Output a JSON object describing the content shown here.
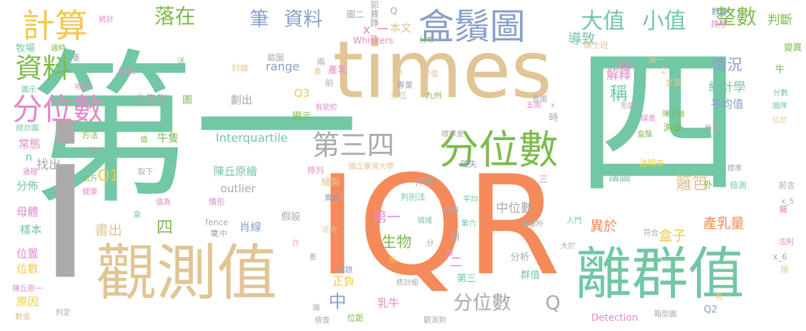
{
  "words": [
    {
      "text": "第一",
      "color": "#72c7a4"
    },
    {
      "text": "四",
      "color": "#72c7a4"
    },
    {
      "text": "IQR",
      "color": "#f58a5a"
    },
    {
      "text": "times",
      "color": "#e0c596"
    },
    {
      "text": "i",
      "color": "#aaaaaa"
    },
    {
      "text": "觀測值",
      "color": "#e0c596"
    },
    {
      "text": "離群值",
      "color": "#72c7a4"
    },
    {
      "text": "盒鬚圖",
      "color": "#8aa0c8"
    },
    {
      "text": "分位數",
      "color": "#7dbb4c"
    },
    {
      "text": "第三四",
      "color": "#aaaaaa"
    },
    {
      "text": "計算",
      "color": "#f2c94c"
    },
    {
      "text": "資料",
      "color": "#7dbb4c"
    },
    {
      "text": "分位數",
      "color": "#e38ac9"
    },
    {
      "text": "落在",
      "color": "#7dbb4c"
    },
    {
      "text": "筆",
      "color": "#8aa0c8"
    },
    {
      "text": "資料",
      "color": "#8aa0c8"
    },
    {
      "text": "大值",
      "color": "#72c7a4"
    },
    {
      "text": "小值",
      "color": "#72c7a4"
    },
    {
      "text": "整數",
      "color": "#7dbb4c"
    },
    {
      "text": "判斷",
      "color": "#7dbb4c"
    },
    {
      "text": "統計",
      "color": "#e38ac9"
    },
    {
      "text": "圖二",
      "color": "#aaaaaa"
    },
    {
      "text": "郭寶錚",
      "color": "#aaaaaa"
    },
    {
      "text": "Q",
      "color": "#aaaaaa"
    },
    {
      "text": "本文",
      "color": "#e0c596"
    },
    {
      "text": "x_一",
      "color": "#e38ac9"
    },
    {
      "text": "Whiskers",
      "color": "#e38ac9"
    },
    {
      "text": "分布",
      "color": "#7dbb4c"
    },
    {
      "text": "導致",
      "color": "#72c7a4"
    },
    {
      "text": "碩士班",
      "color": "#e0c596"
    },
    {
      "text": "數據",
      "color": "#8aa0c8"
    },
    {
      "text": "排序",
      "color": "#e38ac9"
    },
    {
      "text": "變異",
      "color": "#7dbb4c"
    },
    {
      "text": "牧場",
      "color": "#72c7a4"
    },
    {
      "text": "適時",
      "color": "#7dbb4c"
    },
    {
      "text": "隻",
      "color": "#aaaaaa"
    },
    {
      "text": "視為",
      "color": "#e38ac9"
    },
    {
      "text": "法",
      "color": "#7dbb4c"
    },
    {
      "text": "歐圖",
      "color": "#aaaaaa"
    },
    {
      "text": "range",
      "color": "#8aa0c8"
    },
    {
      "text": "討論",
      "color": "#e0c596"
    },
    {
      "text": "兩",
      "color": "#aaaaaa"
    },
    {
      "text": "產乳",
      "color": "#e38ac9"
    },
    {
      "text": "前",
      "color": "#aaaaaa"
    },
    {
      "text": "Q3",
      "color": "#f2c94c"
    },
    {
      "text": "情況",
      "color": "#8aa0c8"
    },
    {
      "text": "解釋",
      "color": "#e38ac9"
    },
    {
      "text": "標出",
      "color": "#e38ac9"
    },
    {
      "text": "圖一",
      "color": "#e0c596"
    },
    {
      "text": "牛",
      "color": "#7dbb4c"
    },
    {
      "text": "分數",
      "color": "#72c7a4"
    },
    {
      "text": "順序",
      "color": "#72c7a4"
    },
    {
      "text": "位於",
      "color": "#e0c596"
    },
    {
      "text": "圖示",
      "color": "#72c7a4"
    },
    {
      "text": "收集",
      "color": "#e38ac9"
    },
    {
      "text": "收集到",
      "color": "#aaaaaa"
    },
    {
      "text": "圖",
      "color": "#7dbb4c"
    },
    {
      "text": "劃出",
      "color": "#aaaaaa"
    },
    {
      "text": "專業",
      "color": "#aaaaaa"
    },
    {
      "text": "分位",
      "color": "#e0c596"
    },
    {
      "text": "九州",
      "color": "#7dbb4c"
    },
    {
      "text": "意圖",
      "color": "#aaaaaa"
    },
    {
      "text": "統計學",
      "color": "#72c7a4"
    },
    {
      "text": "文獻",
      "color": "#e0c596"
    },
    {
      "text": "平均值",
      "color": "#8aa0c8"
    },
    {
      "text": "稱",
      "color": "#72c7a4"
    },
    {
      "text": "時",
      "color": "#aaaaaa"
    },
    {
      "text": "五南",
      "color": "#e38ac9"
    },
    {
      "text": "x",
      "color": "#72c7a4"
    },
    {
      "text": "形圖",
      "color": "#aaaaaa"
    },
    {
      "text": "誤差",
      "color": "#e38ac9"
    },
    {
      "text": "陳玉敏",
      "color": "#7dbb4c"
    },
    {
      "text": "測量",
      "color": "#7dbb4c"
    },
    {
      "text": "參考",
      "color": "#aaaaaa"
    },
    {
      "text": "盒鬚",
      "color": "#7dbb4c"
    },
    {
      "text": "顯示",
      "color": "#7dbb4c"
    },
    {
      "text": "有助於",
      "color": "#e38ac9"
    },
    {
      "text": "統計圖",
      "color": "#72c7a4"
    },
    {
      "text": "方法",
      "color": "#7dbb4c"
    },
    {
      "text": "值",
      "color": "#7dbb4c"
    },
    {
      "text": "牛隻",
      "color": "#7dbb4c"
    },
    {
      "text": "Interquartile",
      "color": "#72c7a4"
    },
    {
      "text": "標準差",
      "color": "#aaaaaa"
    },
    {
      "text": "常態",
      "color": "#e38ac9"
    },
    {
      "text": "標示",
      "color": "#aaaaaa"
    },
    {
      "text": "n",
      "color": "#72c7a4"
    },
    {
      "text": "過程",
      "color": "#e38ac9"
    },
    {
      "text": "找出",
      "color": "#aaaaaa"
    },
    {
      "text": "取下",
      "color": "#aaaaaa"
    },
    {
      "text": "排列",
      "color": "#e38ac9"
    },
    {
      "text": "國立臺灣大學",
      "color": "#e0c596"
    },
    {
      "text": "疏失",
      "color": "#8aa0c8"
    },
    {
      "text": "沈明來",
      "color": "#f2c94c"
    },
    {
      "text": "標準",
      "color": "#aaaaaa"
    },
    {
      "text": "Q1",
      "color": "#f2c94c"
    },
    {
      "text": "陳丘原繪",
      "color": "#72c7a4"
    },
    {
      "text": "繪製",
      "color": "#e0c596"
    },
    {
      "text": "作者",
      "color": "#aaaaaa"
    },
    {
      "text": "三",
      "color": "#e38ac9"
    },
    {
      "text": "公斤",
      "color": "#7dbb4c"
    },
    {
      "text": "健康",
      "color": "#e38ac9"
    },
    {
      "text": "outlier",
      "color": "#aaaaaa"
    },
    {
      "text": "盒",
      "color": "#72c7a4"
    },
    {
      "text": "鬚圖",
      "color": "#72c7a4"
    },
    {
      "text": "籬笆",
      "color": "#e0c596"
    },
    {
      "text": "外",
      "color": "#7dbb4c"
    },
    {
      "text": "檢測",
      "color": "#72c7a4"
    },
    {
      "text": "分佈",
      "color": "#72c7a4"
    },
    {
      "text": "值為",
      "color": "#e38ac9"
    },
    {
      "text": "情形",
      "color": "#e38ac9"
    },
    {
      "text": "實驗",
      "color": "#8aa0c8"
    },
    {
      "text": "判別法",
      "color": "#72c7a4"
    },
    {
      "text": "平均",
      "color": "#72c7a4"
    },
    {
      "text": "經驗",
      "color": "#aaaaaa"
    },
    {
      "text": "中位數",
      "color": "#aaaaaa"
    },
    {
      "text": "籬",
      "color": "#e38ac9"
    },
    {
      "text": "前言",
      "color": "#aaaaaa"
    },
    {
      "text": "母體",
      "color": "#e38ac9"
    },
    {
      "text": "x_5",
      "color": "#aaaaaa"
    },
    {
      "text": "樣本",
      "color": "#72c7a4"
    },
    {
      "text": "假設",
      "color": "#aaaaaa"
    },
    {
      "text": "第一",
      "color": "#e38ac9"
    },
    {
      "text": "領域",
      "color": "#72c7a4"
    },
    {
      "text": "第六",
      "color": "#72c7a4"
    },
    {
      "text": "農藝所",
      "color": "#aaaaaa"
    },
    {
      "text": "入門",
      "color": "#72c7a4"
    },
    {
      "text": "符合",
      "color": "#aaaaaa"
    },
    {
      "text": "產乳量",
      "color": "#f58a5a"
    },
    {
      "text": "四",
      "color": "#7dbb4c"
    },
    {
      "text": "肖線",
      "color": "#8aa0c8"
    },
    {
      "text": "fence",
      "color": "#aaaaaa"
    },
    {
      "text": "之中",
      "color": "#aaaaaa"
    },
    {
      "text": "洽詢",
      "color": "#e0c596"
    },
    {
      "text": "頭",
      "color": "#aaaaaa"
    },
    {
      "text": "盒子",
      "color": "#f2c94c"
    },
    {
      "text": "異於",
      "color": "#f58a5a"
    },
    {
      "text": "法則",
      "color": "#e38ac9"
    },
    {
      "text": "位置",
      "color": "#e38ac9"
    },
    {
      "text": "畫出",
      "color": "#e0c596"
    },
    {
      "text": "介",
      "color": "#e38ac9"
    },
    {
      "text": "生物",
      "color": "#7dbb4c"
    },
    {
      "text": "分析",
      "color": "#aaaaaa"
    },
    {
      "text": "大於",
      "color": "#aaaaaa"
    },
    {
      "text": "x_6",
      "color": "#aaaaaa"
    },
    {
      "text": "位數",
      "color": "#f2c94c"
    },
    {
      "text": "差",
      "color": "#aaaaaa"
    },
    {
      "text": "例題",
      "color": "#8aa0c8"
    },
    {
      "text": "倍",
      "color": "#f2c94c"
    },
    {
      "text": "第三",
      "color": "#72c7a4"
    },
    {
      "text": "群值",
      "color": "#72c7a4"
    },
    {
      "text": "版",
      "color": "#e0c596"
    },
    {
      "text": "陳丘原一",
      "color": "#e38ac9"
    },
    {
      "text": "原因",
      "color": "#f2c94c"
    },
    {
      "text": "正負",
      "color": "#f2c94c"
    },
    {
      "text": "統計組",
      "color": "#aaaaaa"
    },
    {
      "text": "中",
      "color": "#8aa0c8"
    },
    {
      "text": "乳牛",
      "color": "#e38ac9"
    },
    {
      "text": "分位數",
      "color": "#aaaaaa"
    },
    {
      "text": "Q",
      "color": "#aaaaaa"
    },
    {
      "text": "乳",
      "color": "#f2c94c"
    },
    {
      "text": "數值",
      "color": "#e0c596"
    },
    {
      "text": "判定",
      "color": "#aaaaaa"
    },
    {
      "text": "端",
      "color": "#aaaaaa"
    },
    {
      "text": "檢查",
      "color": "#aaaaaa"
    },
    {
      "text": "位距",
      "color": "#7dbb4c"
    },
    {
      "text": "觀測到",
      "color": "#aaaaaa"
    },
    {
      "text": "Detection",
      "color": "#e38ac9"
    },
    {
      "text": "箱型圖",
      "color": "#aaaaaa"
    },
    {
      "text": "Q2",
      "color": "#8aa0c8"
    },
    {
      "text": "二",
      "color": "#e38ac9"
    },
    {
      "text": "個",
      "color": "#e38ac9"
    },
    {
      "text": "分",
      "color": "#aaaaaa"
    },
    {
      "text": "產",
      "color": "#e0c596"
    },
    {
      "text": "需",
      "color": "#aaaaaa"
    },
    {
      "text": "笆",
      "color": "#e0c596"
    },
    {
      "text": "差值",
      "color": "#e0c596"
    },
    {
      "text": "Z",
      "color": "#e0c596"
    }
  ]
}
